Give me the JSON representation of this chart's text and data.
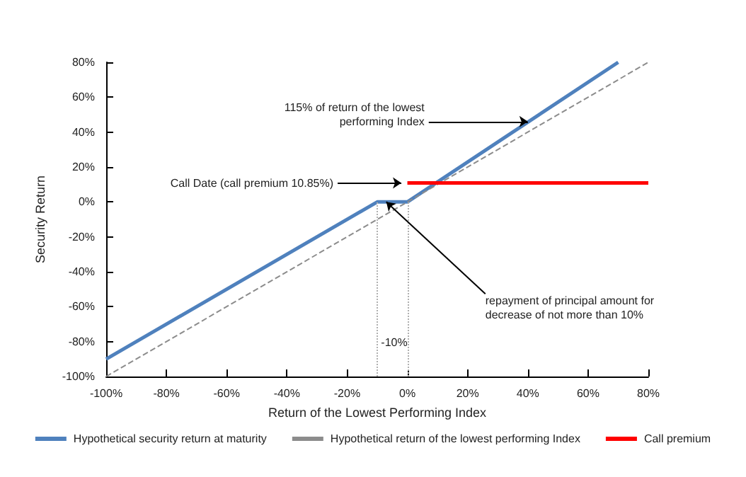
{
  "chart_data": {
    "type": "line",
    "xlabel": "Return of the Lowest Performing Index",
    "ylabel": "Security Return",
    "series": [
      {
        "name": "Hypothetical security return at maturity",
        "color": "#4f81bd",
        "x": [
          -100,
          -10,
          0,
          70
        ],
        "values": [
          -90,
          0,
          0,
          80
        ]
      },
      {
        "name": "Hypothetical return of the lowest performing Index",
        "color": "#8c8c8c",
        "line_style": "dashed",
        "x": [
          -100,
          80
        ],
        "values": [
          -100,
          80
        ]
      },
      {
        "name": "Call premium",
        "color": "#ff0000",
        "x": [
          0,
          80
        ],
        "values": [
          10.85,
          10.85
        ]
      }
    ],
    "xlim": [
      -100,
      80
    ],
    "ylim": [
      -100,
      80
    ],
    "xticks": [
      {
        "value": -100,
        "label": "-100%"
      },
      {
        "value": -80,
        "label": "-80%"
      },
      {
        "value": -60,
        "label": "-60%"
      },
      {
        "value": -40,
        "label": "-40%"
      },
      {
        "value": -20,
        "label": "-20%"
      },
      {
        "value": 0,
        "label": "0%"
      },
      {
        "value": 20,
        "label": "20%"
      },
      {
        "value": 40,
        "label": "40%"
      },
      {
        "value": 60,
        "label": "60%"
      },
      {
        "value": 80,
        "label": "80%"
      }
    ],
    "yticks": [
      {
        "value": -100,
        "label": "-100%"
      },
      {
        "value": -80,
        "label": "-80%"
      },
      {
        "value": -60,
        "label": "-60%"
      },
      {
        "value": -40,
        "label": "-40%"
      },
      {
        "value": -20,
        "label": "-20%"
      },
      {
        "value": 0,
        "label": "0%"
      },
      {
        "value": 20,
        "label": "20%"
      },
      {
        "value": 40,
        "label": "40%"
      },
      {
        "value": 60,
        "label": "60%"
      },
      {
        "value": 80,
        "label": "80%"
      }
    ],
    "ref_lines": [
      {
        "axis": "x",
        "value": -10,
        "label": "-10%",
        "color": "#b0b0b0",
        "line_style": "dotted"
      },
      {
        "axis": "x",
        "value": 0,
        "label": null,
        "color": "#b0b0b0",
        "line_style": "dotted"
      }
    ],
    "annotations": [
      {
        "text": "115% of return of the lowest\nperforming Index",
        "x": 40,
        "y": 46
      },
      {
        "text": "Call Date (call premium 10.85%)",
        "x": -2,
        "y": 10.85
      },
      {
        "text": "repayment of principal amount for\ndecrease of not more than 10%",
        "x": -7,
        "y": 0
      }
    ],
    "grid": false,
    "legend": "bottom"
  }
}
